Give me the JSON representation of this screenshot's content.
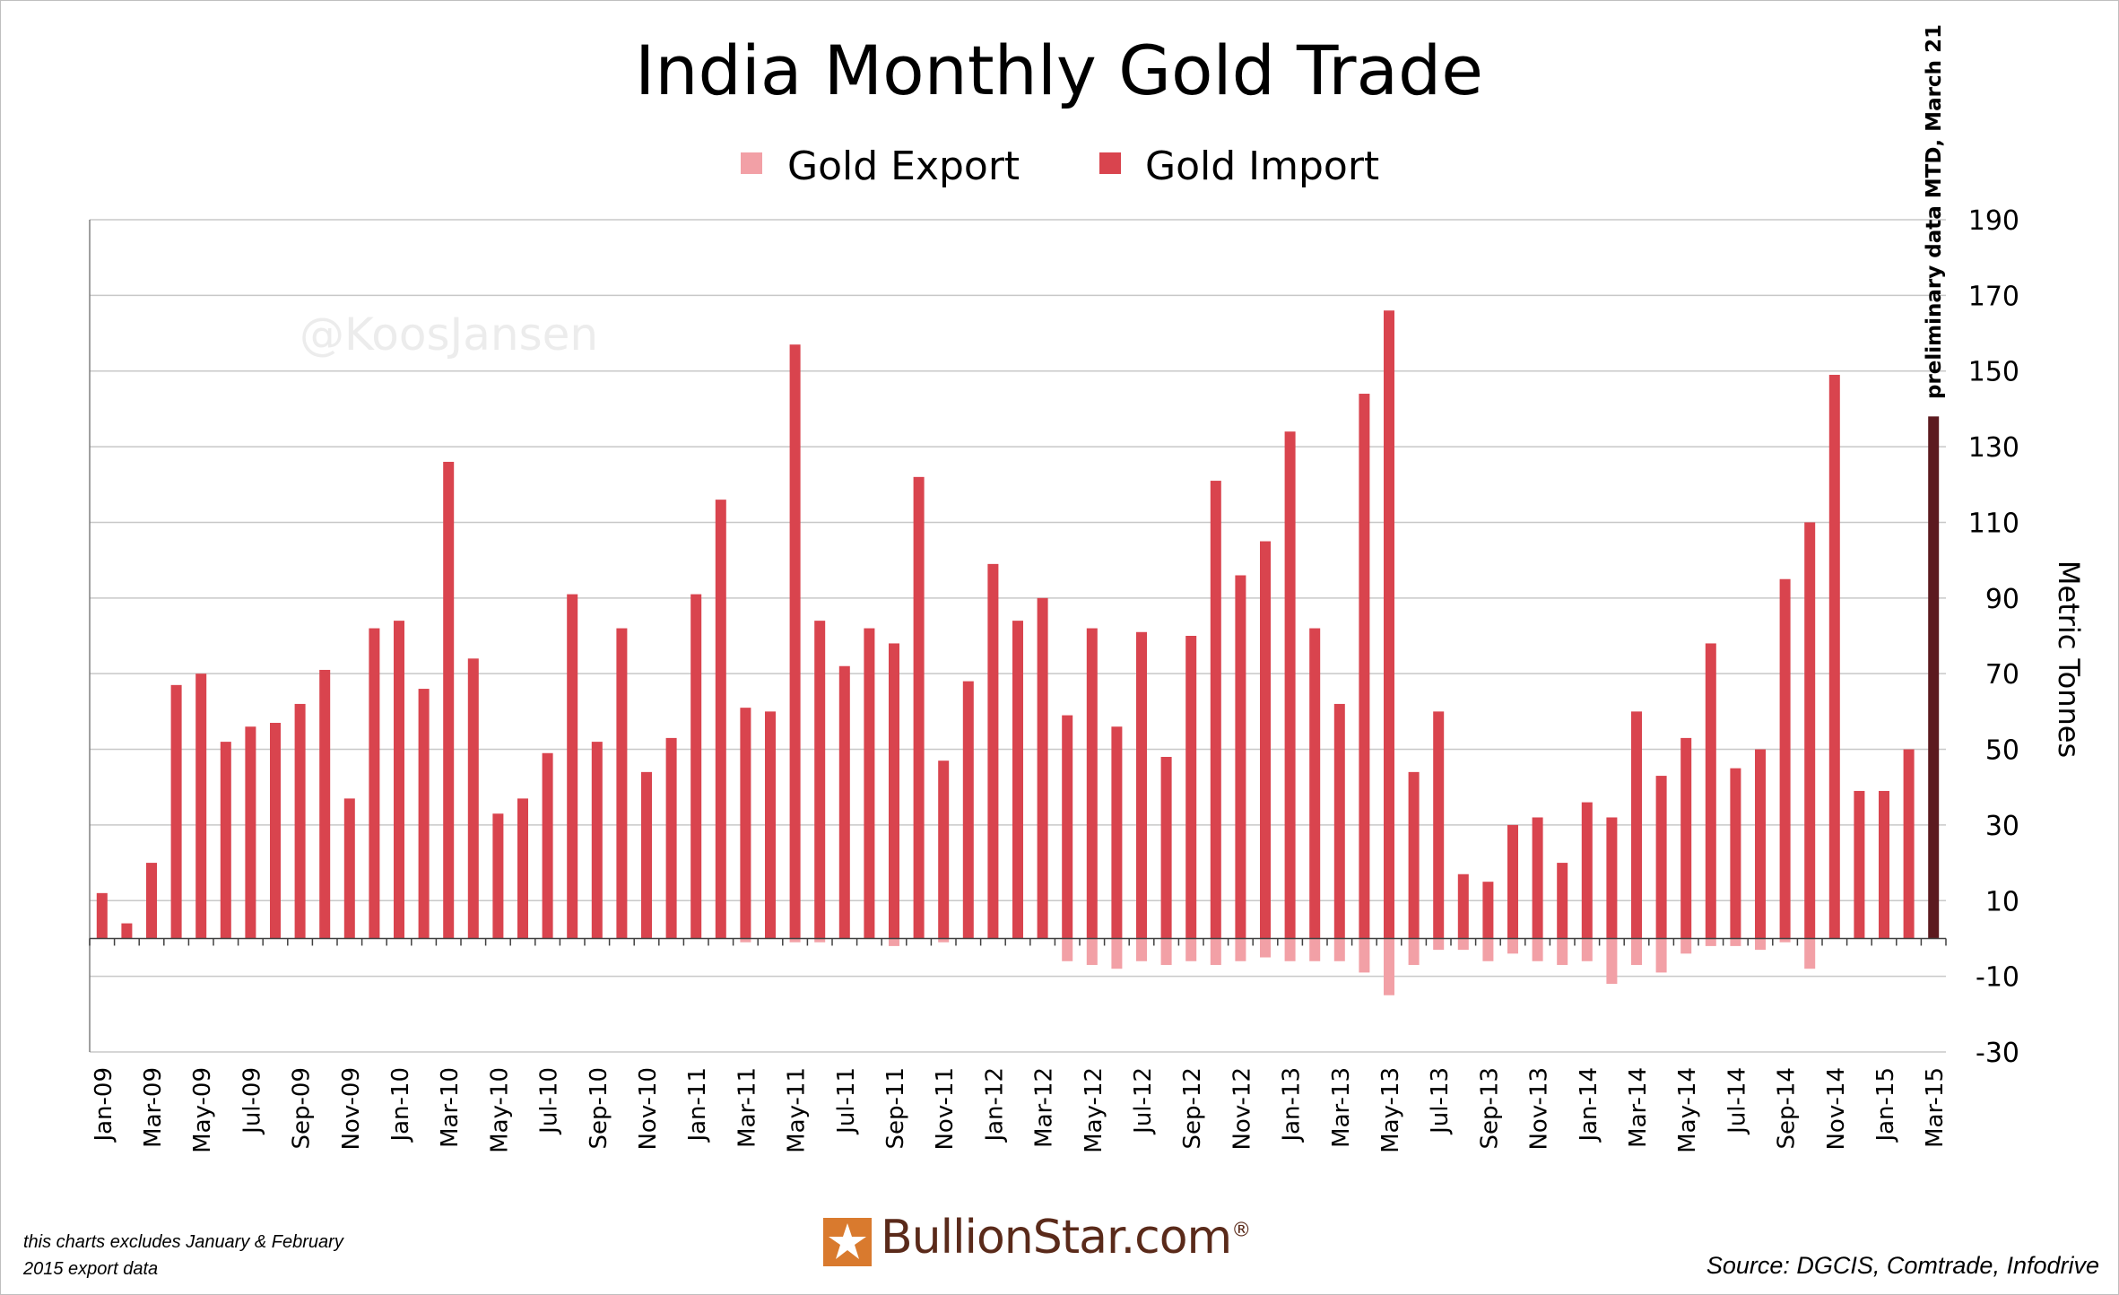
{
  "chart_data": {
    "type": "bar",
    "title": "India Monthly Gold Trade",
    "ylabel": "Metric Tonnes",
    "ylim": [
      -30,
      190
    ],
    "yticks": [
      -30,
      -10,
      10,
      30,
      50,
      70,
      90,
      110,
      130,
      150,
      170,
      190
    ],
    "grid": true,
    "legend_position": "top",
    "categories": [
      "Jan-09",
      "Feb-09",
      "Mar-09",
      "Apr-09",
      "May-09",
      "Jun-09",
      "Jul-09",
      "Aug-09",
      "Sep-09",
      "Oct-09",
      "Nov-09",
      "Dec-09",
      "Jan-10",
      "Feb-10",
      "Mar-10",
      "Apr-10",
      "May-10",
      "Jun-10",
      "Jul-10",
      "Aug-10",
      "Sep-10",
      "Oct-10",
      "Nov-10",
      "Dec-10",
      "Jan-11",
      "Feb-11",
      "Mar-11",
      "Apr-11",
      "May-11",
      "Jun-11",
      "Jul-11",
      "Aug-11",
      "Sep-11",
      "Oct-11",
      "Nov-11",
      "Dec-11",
      "Jan-12",
      "Feb-12",
      "Mar-12",
      "Apr-12",
      "May-12",
      "Jun-12",
      "Jul-12",
      "Aug-12",
      "Sep-12",
      "Oct-12",
      "Nov-12",
      "Dec-12",
      "Jan-13",
      "Feb-13",
      "Mar-13",
      "Apr-13",
      "May-13",
      "Jun-13",
      "Jul-13",
      "Aug-13",
      "Sep-13",
      "Oct-13",
      "Nov-13",
      "Dec-13",
      "Jan-14",
      "Feb-14",
      "Mar-14",
      "Apr-14",
      "May-14",
      "Jun-14",
      "Jul-14",
      "Aug-14",
      "Sep-14",
      "Oct-14",
      "Nov-14",
      "Dec-14",
      "Jan-15",
      "Feb-15",
      "Mar-15"
    ],
    "tick_labels": [
      "Jan-09",
      "Mar-09",
      "May-09",
      "Jul-09",
      "Sep-09",
      "Nov-09",
      "Jan-10",
      "Mar-10",
      "May-10",
      "Jul-10",
      "Sep-10",
      "Nov-10",
      "Jan-11",
      "Mar-11",
      "May-11",
      "Jul-11",
      "Sep-11",
      "Nov-11",
      "Jan-12",
      "Mar-12",
      "May-12",
      "Jul-12",
      "Sep-12",
      "Nov-12",
      "Jan-13",
      "Mar-13",
      "May-13",
      "Jul-13",
      "Sep-13",
      "Nov-13",
      "Jan-14",
      "Mar-14",
      "May-14",
      "Jul-14",
      "Sep-14",
      "Nov-14",
      "Jan-15",
      "Mar-15"
    ],
    "series": [
      {
        "name": "Gold Export",
        "color": "#f2a0a6",
        "values": [
          0,
          0,
          0,
          0,
          0,
          0,
          0,
          0,
          0,
          0,
          0,
          0,
          0,
          0,
          0,
          0,
          0,
          0,
          0,
          0,
          0,
          0,
          0,
          0,
          0,
          0,
          -1,
          0,
          -1,
          -1,
          0,
          0,
          -2,
          0,
          -1,
          0,
          0,
          0,
          0,
          -6,
          -7,
          -8,
          -6,
          -7,
          -6,
          -7,
          -6,
          -5,
          -6,
          -6,
          -6,
          -9,
          -15,
          -7,
          -3,
          -3,
          -6,
          -4,
          -6,
          -7,
          -6,
          -12,
          -7,
          -9,
          -4,
          -2,
          -2,
          -3,
          -1,
          -8,
          0,
          0,
          0,
          0,
          0
        ]
      },
      {
        "name": "Gold Import",
        "color": "#d9444e",
        "values": [
          12,
          4,
          20,
          67,
          70,
          52,
          56,
          57,
          62,
          71,
          37,
          82,
          84,
          66,
          126,
          74,
          33,
          37,
          49,
          91,
          52,
          82,
          44,
          53,
          91,
          116,
          61,
          60,
          157,
          84,
          72,
          82,
          78,
          122,
          47,
          68,
          99,
          84,
          90,
          59,
          82,
          56,
          81,
          48,
          80,
          121,
          96,
          105,
          134,
          82,
          62,
          144,
          166,
          44,
          60,
          17,
          15,
          30,
          32,
          20,
          36,
          32,
          60,
          43,
          53,
          78,
          45,
          50,
          95,
          110,
          149,
          39,
          39,
          50,
          138
        ]
      }
    ],
    "highlight": {
      "category": "Mar-15",
      "value": 138,
      "color": "#5c1a1f",
      "annotation": "preliminary data MTD, March 21"
    },
    "watermark": "@KoosJansen"
  },
  "footer": {
    "note": "this charts excludes January & February 2015 export data",
    "source": "Source: DGCIS, Comtrade, Infodrive",
    "logo": "BullionStar.com"
  },
  "colors": {
    "gridline": "#c8c8c8",
    "axis": "#808080",
    "logo_orange": "#d97a2e",
    "logo_brown": "#5a2a1a"
  }
}
